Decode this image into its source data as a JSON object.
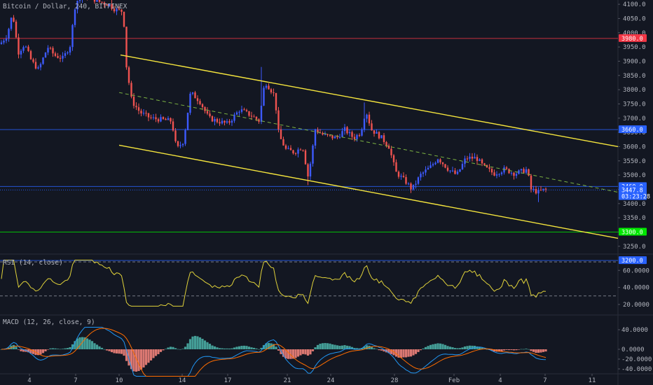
{
  "chart_data": {
    "type": "candlestick",
    "title": "Bitcoin / Dollar, 240, BITFINEX",
    "x_labels": [
      "4",
      "7",
      "10",
      "14",
      "17",
      "21",
      "24",
      "28",
      "Feb",
      "4",
      "7",
      "11"
    ],
    "price_axis": {
      "ticks": [
        "4100.0",
        "4050.0",
        "4000.0",
        "3950.0",
        "3900.0",
        "3850.0",
        "3800.0",
        "3750.0",
        "3700.0",
        "3650.0",
        "3600.0",
        "3550.0",
        "3500.0",
        "3450.0",
        "3400.0",
        "3350.0",
        "3300.0",
        "3250.0"
      ],
      "range": [
        3225,
        4115
      ]
    },
    "price_markers": [
      {
        "label": "3980.0",
        "value": 3980,
        "color": "#f23645",
        "line": true
      },
      {
        "label": "3660.0",
        "value": 3660,
        "color": "#2962ff",
        "line": true
      },
      {
        "label": "3460.0",
        "value": 3460,
        "color": "#2962ff",
        "line": true
      },
      {
        "label": "3447.8",
        "value": 3447.8,
        "color": "#2962ff",
        "line": false
      },
      {
        "label": "03:23:28",
        "value": 3425,
        "color": "#2962ff",
        "line": false
      },
      {
        "label": "3300.0",
        "value": 3300,
        "color": "#00e600",
        "line": true
      },
      {
        "label": "3200.0",
        "value": 3200,
        "color": "#2962ff",
        "line": true
      }
    ],
    "rsi": {
      "title": "RSI (14, close)",
      "ticks": [
        "60.0000",
        "40.0000",
        "20.0000"
      ],
      "bands": [
        70,
        30
      ]
    },
    "macd": {
      "title": "MACD (12, 26, close, 9)",
      "ticks": [
        "40.0000",
        "0.0000",
        "-20.0000",
        "-40.0000"
      ]
    },
    "colors": {
      "up": "#3d5afe",
      "down": "#ef5350",
      "trendline": "#f5e53d",
      "rsi_line": "#e0d23a",
      "macd_line": "#2196f3",
      "signal_line": "#ff6d00",
      "hist_pos": "#4db6ac",
      "hist_neg": "#ff8a80"
    }
  }
}
